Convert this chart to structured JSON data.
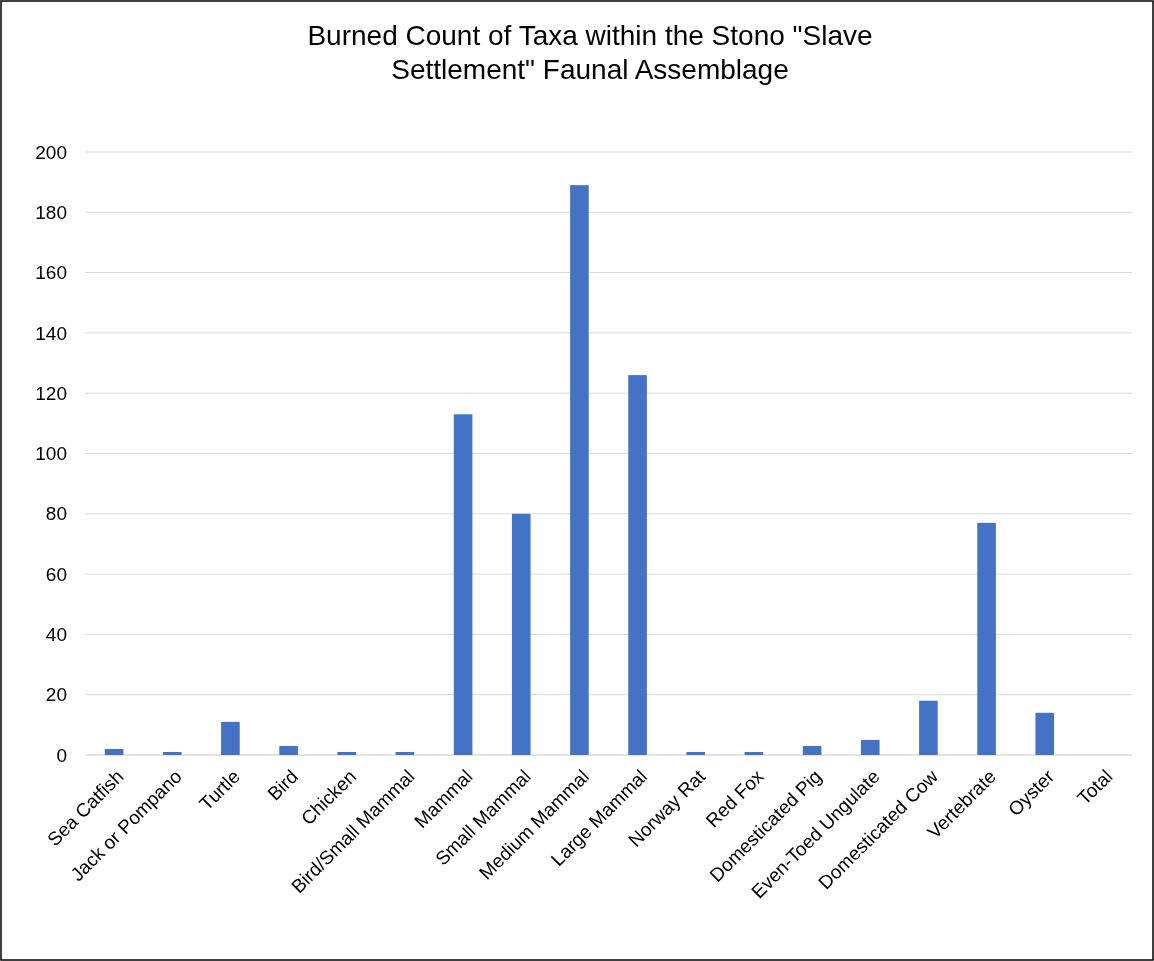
{
  "chart_data": {
    "type": "bar",
    "title": "Burned Count of Taxa within the Stono \"Slave Settlement\" Faunal Assemblage",
    "categories": [
      "Sea Catfish",
      "Jack or Pompano",
      "Turtle",
      "Bird",
      "Chicken",
      "Bird/Small Mammal",
      "Mammal",
      "Small Mammal",
      "Medium Mammal",
      "Large Mammal",
      "Norway Rat",
      "Red Fox",
      "Domesticated Pig",
      "Even-Toed Ungulate",
      "Domesticated Cow",
      "Vertebrate",
      "Oyster",
      "Total"
    ],
    "values": [
      2,
      1,
      11,
      3,
      1,
      1,
      113,
      80,
      189,
      126,
      1,
      1,
      3,
      5,
      18,
      77,
      14,
      0
    ],
    "color": "#4472c4",
    "ylim": [
      0,
      200
    ],
    "yticks": [
      0,
      20,
      40,
      60,
      80,
      100,
      120,
      140,
      160,
      180,
      200
    ],
    "grid": "y"
  }
}
